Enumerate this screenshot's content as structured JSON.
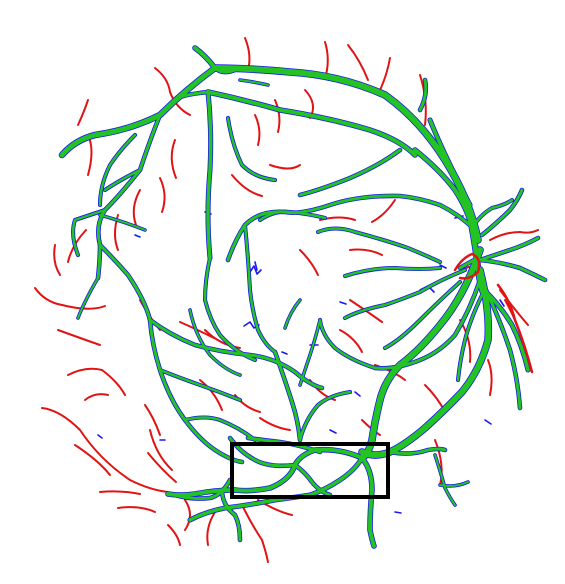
{
  "figure": {
    "kind": "retinal vessel segmentation overlay",
    "legend_colors": {
      "correct": "#22c322",
      "missed": "#e01414",
      "false_positive": "#1a1aee"
    },
    "highlight_box_color": "#000000"
  }
}
